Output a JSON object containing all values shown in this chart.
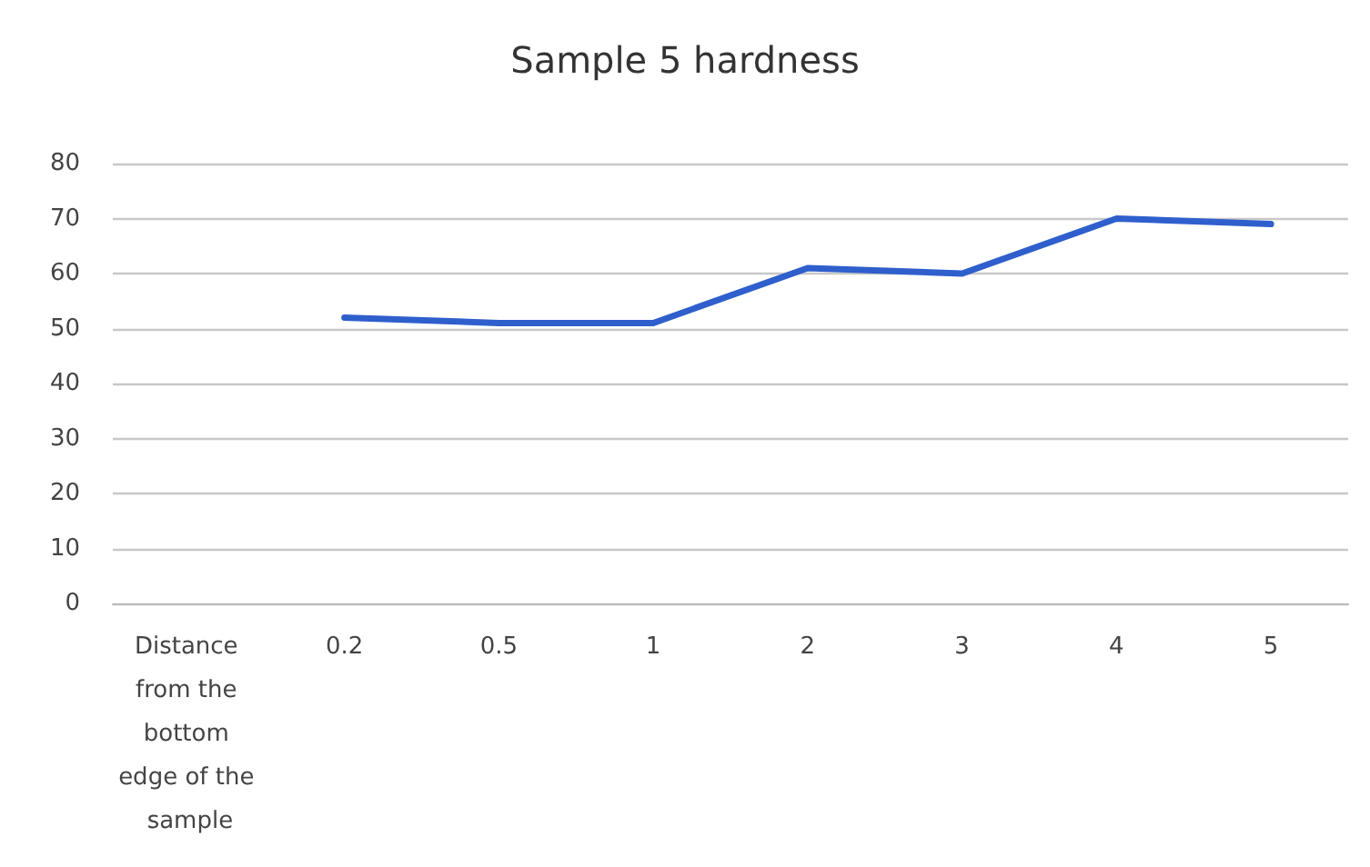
{
  "chart_data": {
    "type": "line",
    "title": "Sample 5 hardness",
    "categories": [
      "Distance from the bottom edge of the sample",
      "0.2",
      "0.5",
      "1",
      "2",
      "3",
      "4",
      "5"
    ],
    "series": [
      {
        "color": "#2f5fcc",
        "values": [
          null,
          52,
          51,
          51,
          61,
          60,
          70,
          69
        ]
      }
    ],
    "ylim": [
      0,
      80
    ],
    "yticks": [
      0,
      10,
      20,
      30,
      40,
      50,
      60,
      70,
      80
    ],
    "grid": "y",
    "marker": "none",
    "line_style": "solid"
  }
}
